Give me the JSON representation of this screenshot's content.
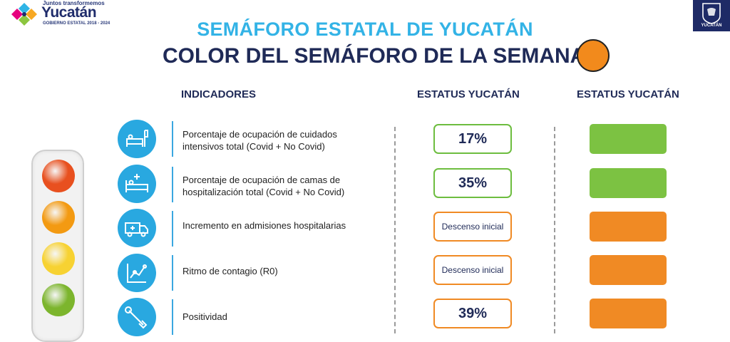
{
  "brand": {
    "slogan": "Juntos transformemos",
    "name": "Yucatán",
    "government": "GOBIERNO ESTATAL 2018 - 2024",
    "shield_label": "YUCATÁN"
  },
  "header": {
    "title": "SEMÁFORO ESTATAL DE YUCATÁN",
    "subtitle": "COLOR DEL SEMÁFORO DE LA SEMANA",
    "week_color": "#f28a1c"
  },
  "columns": {
    "indicators": "INDICADORES",
    "status": "ESTATUS YUCATÁN",
    "status_color": "ESTATUS YUCATÁN"
  },
  "traffic_light": {
    "lamps": [
      "#e8501f",
      "#f39a12",
      "#f7d232",
      "#7cb52d"
    ]
  },
  "indicators": [
    {
      "label": "Porcentaje de ocupación de cuidados intensivos total (Covid + No Covid)",
      "icon": "icu-bed-icon",
      "status": "17%",
      "status_kind": "big",
      "status_color": "#7cc242"
    },
    {
      "label": "Porcentaje de ocupación de camas de hospitalización total (Covid + No Covid)",
      "icon": "hospital-bed-icon",
      "status": "35%",
      "status_kind": "big",
      "status_color": "#7cc242"
    },
    {
      "label": "Incremento en admisiones hospitalarias",
      "icon": "ambulance-icon",
      "status": "Descenso inicial",
      "status_kind": "small",
      "status_color": "#f08a24"
    },
    {
      "label": "Ritmo de contagio (R0)",
      "icon": "contagion-chart-icon",
      "status": "Descenso inicial",
      "status_kind": "small",
      "status_color": "#f08a24"
    },
    {
      "label": "Positividad",
      "icon": "test-swab-icon",
      "status": "39%",
      "status_kind": "big",
      "status_color": "#f08a24"
    }
  ]
}
